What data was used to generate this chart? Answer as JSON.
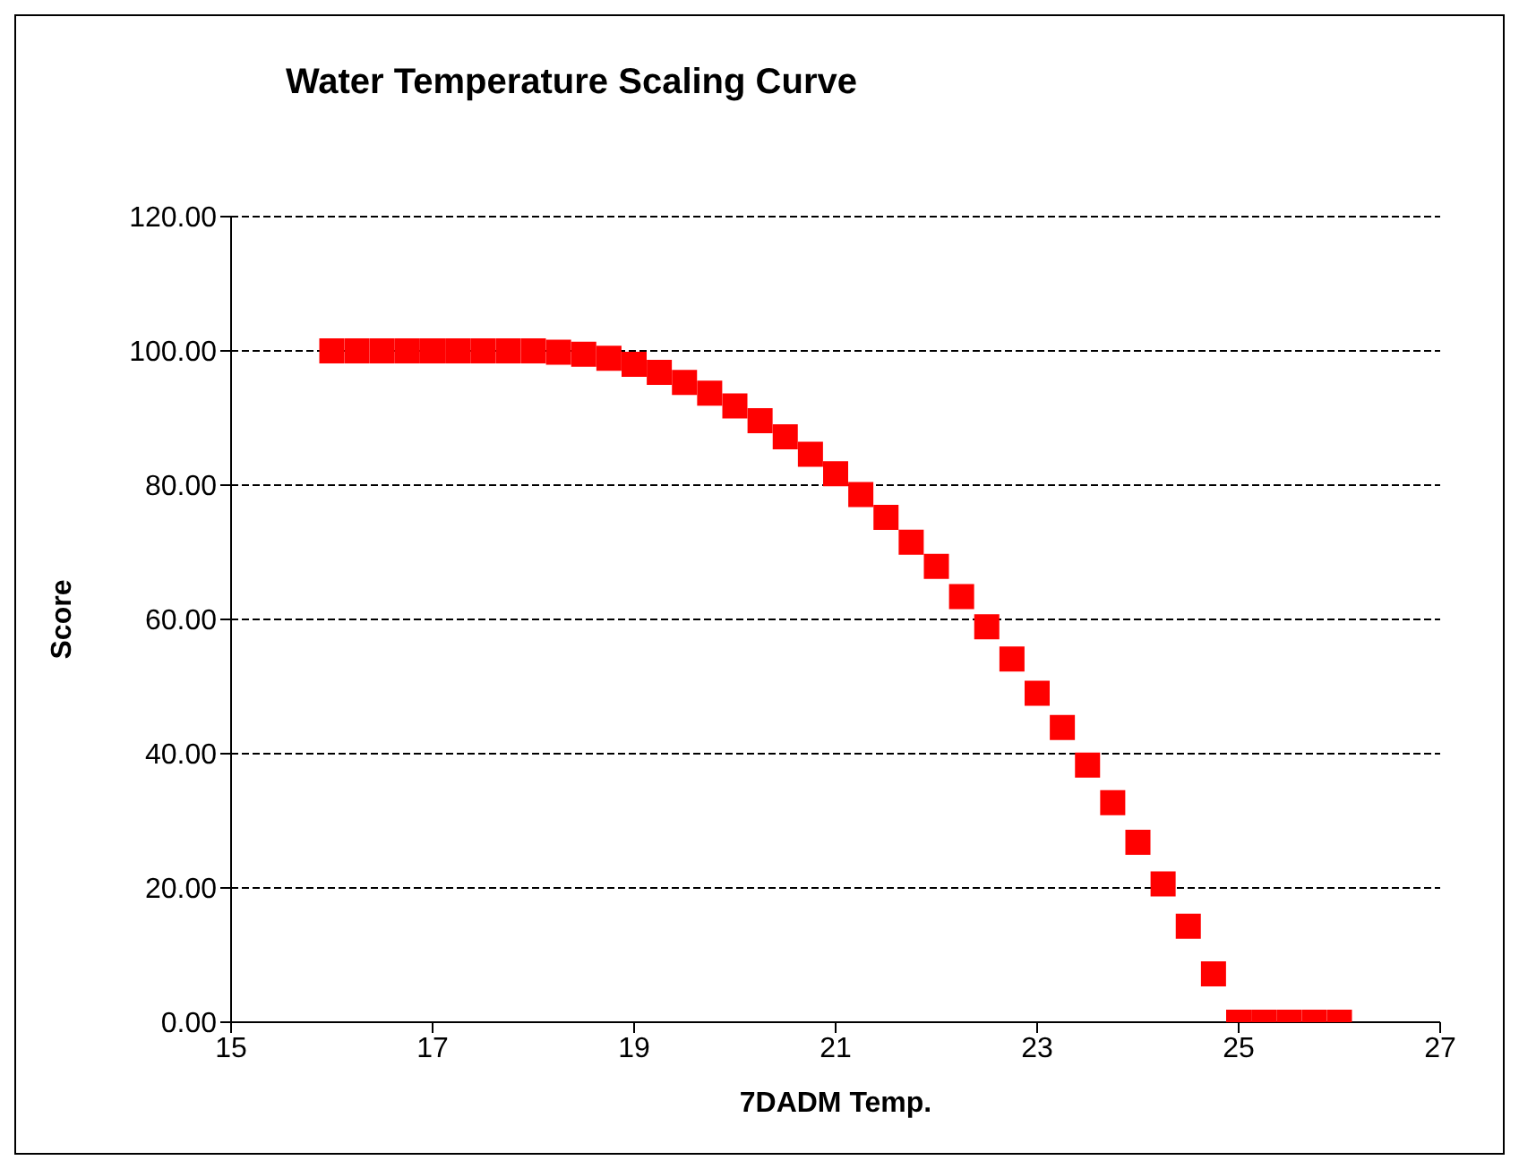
{
  "chart_data": {
    "type": "scatter",
    "title": "Water Temperature Scaling Curve",
    "xlabel": "7DADM Temp.",
    "ylabel": "Score",
    "x": [
      16,
      16.25,
      16.5,
      16.75,
      17,
      17.25,
      17.5,
      17.75,
      18,
      18.25,
      18.5,
      18.75,
      19,
      19.25,
      19.5,
      19.75,
      20,
      20.25,
      20.5,
      20.75,
      21,
      21.25,
      21.5,
      21.75,
      22,
      22.25,
      22.5,
      22.75,
      23,
      23.25,
      23.5,
      23.75,
      24,
      24.25,
      24.5,
      24.75,
      25,
      25.25,
      25.5,
      25.75,
      26
    ],
    "values": [
      100,
      100,
      100,
      100,
      100,
      100,
      100,
      100,
      100,
      99.8,
      99.5,
      98.9,
      98,
      96.8,
      95.3,
      93.7,
      91.8,
      89.6,
      87.2,
      84.6,
      81.7,
      78.6,
      75.2,
      71.5,
      67.9,
      63.4,
      58.9,
      54.1,
      49,
      43.9,
      38.3,
      32.7,
      26.8,
      20.6,
      14.3,
      7.2,
      0,
      0,
      0,
      0,
      0
    ],
    "color": "#ff0000",
    "marker": "square",
    "xlim": [
      15,
      27
    ],
    "xticks": [
      15,
      17,
      19,
      21,
      23,
      25,
      27
    ],
    "ylim": [
      0,
      120
    ],
    "yticks": [
      {
        "value": 0,
        "label": "0.00"
      },
      {
        "value": 20,
        "label": "20.00"
      },
      {
        "value": 40,
        "label": "40.00"
      },
      {
        "value": 60,
        "label": "60.00"
      },
      {
        "value": 80,
        "label": "80.00"
      },
      {
        "value": 100,
        "label": "100.00"
      },
      {
        "value": 120,
        "label": "120.00"
      }
    ],
    "grid": "y",
    "legend": false
  }
}
